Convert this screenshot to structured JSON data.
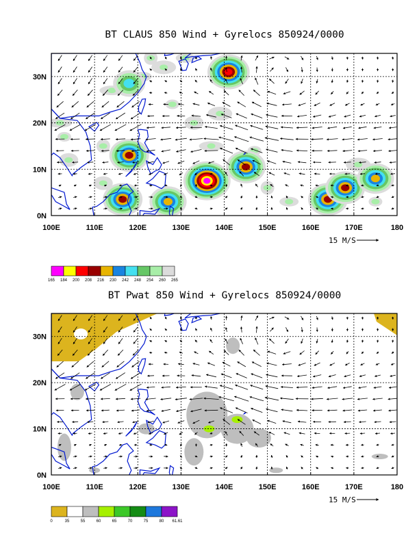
{
  "chart_data": [
    {
      "type": "heatmap",
      "title": "BT CLAUS 850 Wind + Gyrelocs 850924/0000",
      "x_tick_labels": [
        "100E",
        "110E",
        "120E",
        "130E",
        "140E",
        "150E",
        "160E",
        "170E",
        "180"
      ],
      "x_ticks": [
        100,
        110,
        120,
        130,
        140,
        150,
        160,
        170,
        180
      ],
      "y_tick_labels": [
        "0N",
        "10N",
        "20N",
        "30N"
      ],
      "y_ticks": [
        0,
        10,
        20,
        30
      ],
      "xlim": [
        100,
        180
      ],
      "ylim": [
        0,
        35
      ],
      "grid": true,
      "reference_vector_label": "15 M/S",
      "colorbar_levels": [
        "165",
        "184",
        "200",
        "208",
        "216",
        "230",
        "242",
        "248",
        "254",
        "260",
        "265"
      ],
      "colorbar_colors": [
        "#ff00ff",
        "#ffff00",
        "#ff0000",
        "#990000",
        "#e8b400",
        "#1a84e0",
        "#44e0f0",
        "#66c766",
        "#a8eea8",
        "#dcdcdc"
      ],
      "cloud_features": [
        {
          "lon": 136,
          "lat": 7.5,
          "min_level": "165"
        },
        {
          "lon": 141,
          "lat": 31,
          "min_level": "200"
        },
        {
          "lon": 118,
          "lat": 13,
          "min_level": "208"
        },
        {
          "lon": 145,
          "lat": 10.5,
          "min_level": "208"
        },
        {
          "lon": 164,
          "lat": 3.5,
          "min_level": "208"
        },
        {
          "lon": 168,
          "lat": 6,
          "min_level": "208"
        },
        {
          "lon": 116.5,
          "lat": 3.5,
          "min_level": "208"
        },
        {
          "lon": 127,
          "lat": 3,
          "min_level": "216"
        },
        {
          "lon": 118,
          "lat": 28.5,
          "min_level": "242"
        },
        {
          "lon": 175,
          "lat": 8,
          "min_level": "216"
        }
      ]
    },
    {
      "type": "heatmap",
      "title": "BT Pwat 850 Wind + Gyrelocs 850924/0000",
      "x_tick_labels": [
        "100E",
        "110E",
        "120E",
        "130E",
        "140E",
        "150E",
        "160E",
        "170E",
        "180"
      ],
      "x_ticks": [
        100,
        110,
        120,
        130,
        140,
        150,
        160,
        170,
        180
      ],
      "y_tick_labels": [
        "0N",
        "10N",
        "20N",
        "30N"
      ],
      "y_ticks": [
        0,
        10,
        20,
        30
      ],
      "xlim": [
        100,
        180
      ],
      "ylim": [
        0,
        35
      ],
      "grid": true,
      "reference_vector_label": "15 M/S",
      "colorbar_levels": [
        "0",
        "35",
        "55",
        "60",
        "65",
        "70",
        "75",
        "80",
        "61.61"
      ],
      "colorbar_colors": [
        "#dcb41e",
        "#ffffff",
        "#bebebe",
        "#a6f000",
        "#3cc828",
        "#148c14",
        "#1e78dc",
        "#8c14c8"
      ],
      "moisture_features": [
        {
          "lon": 136.5,
          "lat": 10,
          "level": "60"
        },
        {
          "lon": 143,
          "lat": 12,
          "level": "60"
        },
        {
          "lon": 105,
          "lat": 31,
          "level": "0"
        },
        {
          "lon": 180,
          "lat": 34,
          "level": "0"
        }
      ]
    }
  ]
}
